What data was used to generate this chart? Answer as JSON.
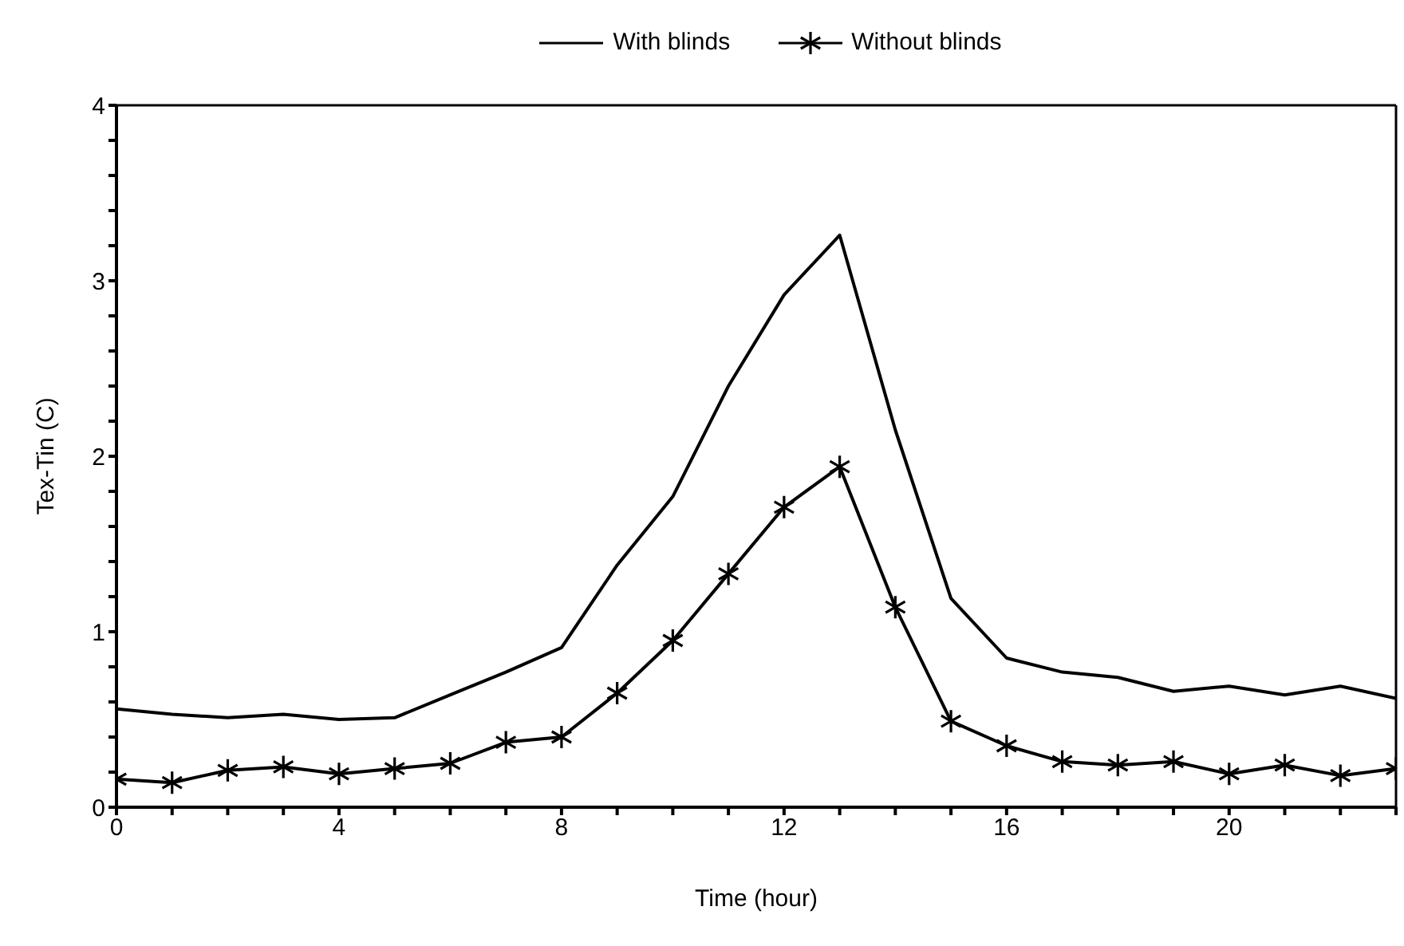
{
  "chart_data": {
    "type": "line",
    "xlabel": "Time (hour)",
    "ylabel": "Tex-Tin (C)",
    "x": [
      0,
      1,
      2,
      3,
      4,
      5,
      6,
      7,
      8,
      9,
      10,
      11,
      12,
      13,
      14,
      15,
      16,
      17,
      18,
      19,
      20,
      21,
      22,
      23
    ],
    "series": [
      {
        "name": "With blinds",
        "color": "#000000",
        "marker": "none",
        "values": [
          0.56,
          0.53,
          0.51,
          0.53,
          0.5,
          0.51,
          0.64,
          0.77,
          0.91,
          1.38,
          1.77,
          2.4,
          2.92,
          3.26,
          2.15,
          1.19,
          0.85,
          0.77,
          0.74,
          0.66,
          0.69,
          0.64,
          0.69,
          0.62
        ]
      },
      {
        "name": "Without blinds",
        "color": "#000000",
        "marker": "cross",
        "values": [
          0.16,
          0.14,
          0.21,
          0.23,
          0.19,
          0.22,
          0.25,
          0.37,
          0.4,
          0.65,
          0.95,
          1.33,
          1.71,
          1.94,
          1.14,
          0.49,
          0.35,
          0.26,
          0.24,
          0.26,
          0.19,
          0.24,
          0.18,
          0.22
        ]
      }
    ],
    "xlim": [
      0,
      23
    ],
    "xticks": [
      0,
      {
        "value": 1,
        "label": null
      },
      {
        "value": 2,
        "label": null
      },
      {
        "value": 3,
        "label": null
      },
      4,
      {
        "value": 5,
        "label": null
      },
      {
        "value": 6,
        "label": null
      },
      {
        "value": 7,
        "label": null
      },
      8,
      {
        "value": 9,
        "label": null
      },
      {
        "value": 10,
        "label": null
      },
      {
        "value": 11,
        "label": null
      },
      12,
      {
        "value": 13,
        "label": null
      },
      {
        "value": 14,
        "label": null
      },
      {
        "value": 15,
        "label": null
      },
      16,
      {
        "value": 17,
        "label": null
      },
      {
        "value": 18,
        "label": null
      },
      {
        "value": 19,
        "label": null
      },
      20,
      {
        "value": 21,
        "label": null
      },
      {
        "value": 22,
        "label": null
      },
      {
        "value": 23,
        "label": null
      }
    ],
    "ylim": [
      0,
      4
    ],
    "yticks": [
      0,
      {
        "value": 0.2,
        "label": null
      },
      {
        "value": 0.4,
        "label": null
      },
      {
        "value": 0.6,
        "label": null
      },
      {
        "value": 0.8,
        "label": null
      },
      1,
      {
        "value": 1.2,
        "label": null
      },
      {
        "value": 1.4,
        "label": null
      },
      {
        "value": 1.6,
        "label": null
      },
      {
        "value": 1.8,
        "label": null
      },
      2,
      {
        "value": 2.2,
        "label": null
      },
      {
        "value": 2.4,
        "label": null
      },
      {
        "value": 2.6,
        "label": null
      },
      {
        "value": 2.8,
        "label": null
      },
      3,
      {
        "value": 3.2,
        "label": null
      },
      {
        "value": 3.4,
        "label": null
      },
      {
        "value": 3.6,
        "label": null
      },
      {
        "value": 3.8,
        "label": null
      },
      4
    ],
    "grid": false,
    "legend": "top",
    "line_style": "solid"
  }
}
